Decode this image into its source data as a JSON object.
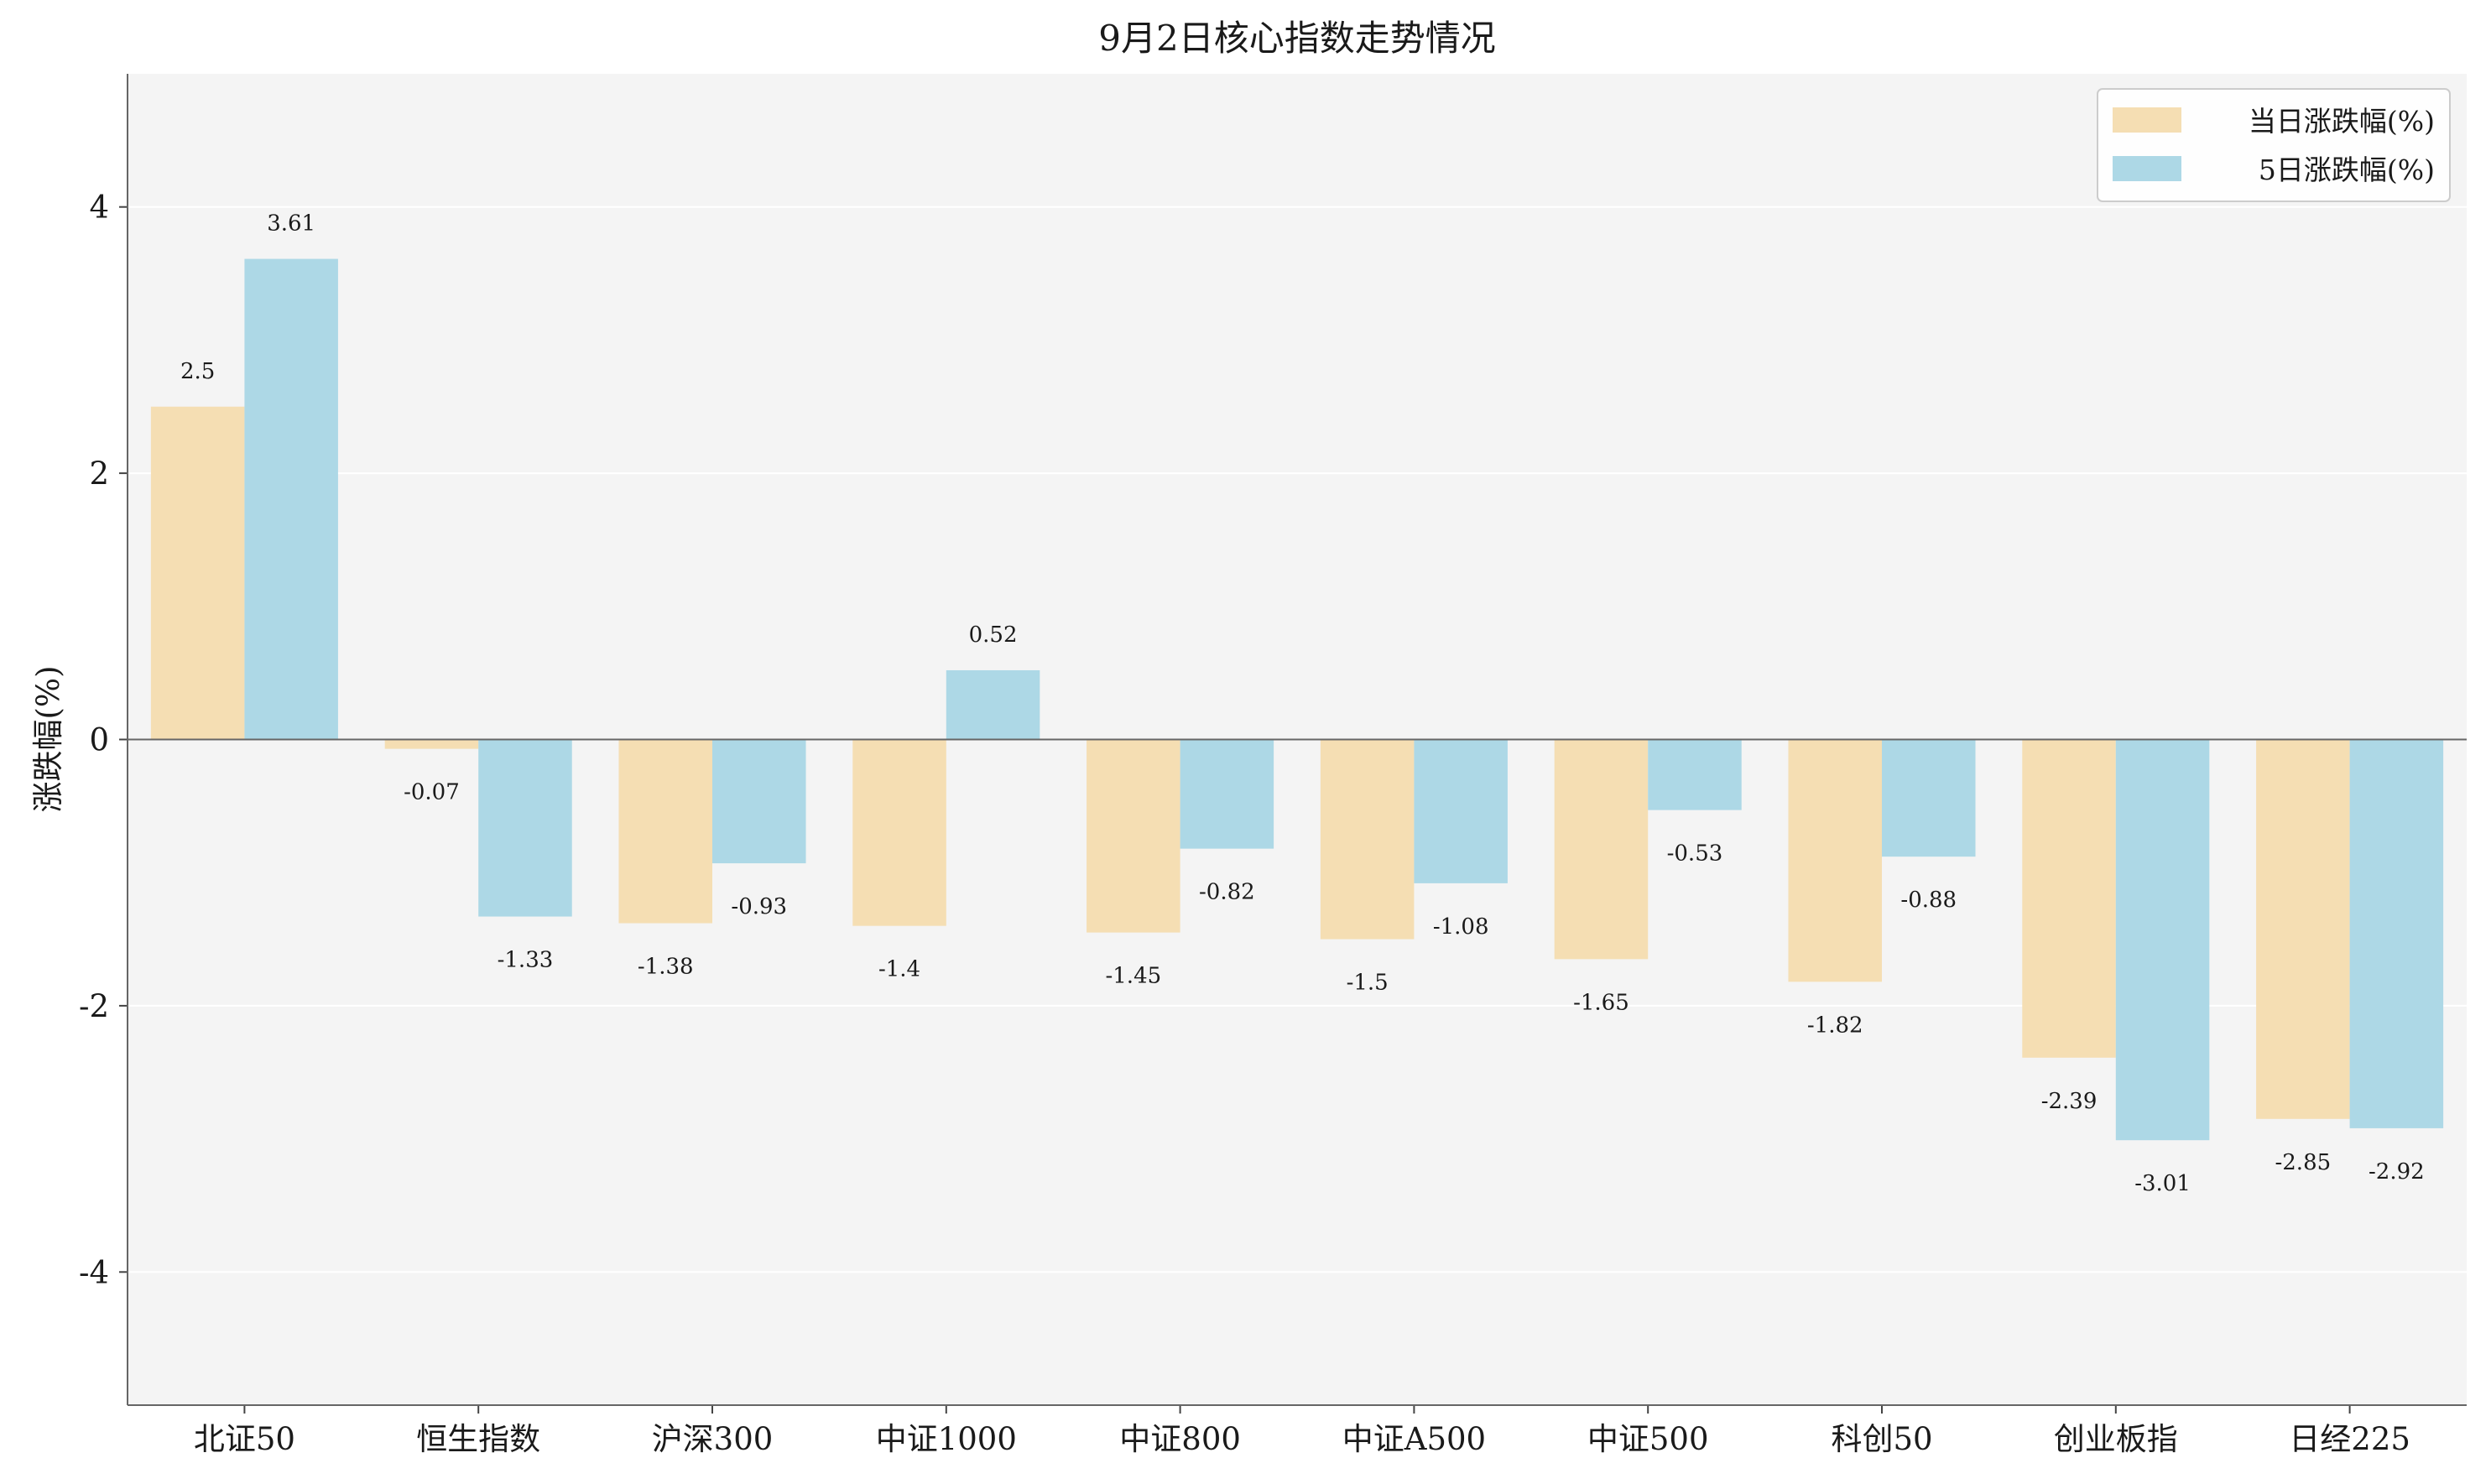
{
  "chart_data": {
    "type": "bar",
    "title": "9月2日核心指数走势情况",
    "xlabel": "",
    "ylabel": "涨跌幅(%)",
    "ylim": [
      -5,
      5
    ],
    "yticks": [
      -4,
      -2,
      0,
      2,
      4
    ],
    "grid": "horizontal",
    "legend_position": "top-right",
    "categories": [
      "北证50",
      "恒生指数",
      "沪深300",
      "中证1000",
      "中证800",
      "中证A500",
      "中证500",
      "科创50",
      "创业板指",
      "日经225"
    ],
    "series": [
      {
        "name": "当日涨跌幅(%)",
        "color": "#f5deb3",
        "values": [
          2.5,
          -0.07,
          -1.38,
          -1.4,
          -1.45,
          -1.5,
          -1.65,
          -1.82,
          -2.39,
          -2.85
        ]
      },
      {
        "name": "5日涨跌幅(%)",
        "color": "#add8e6",
        "values": [
          3.61,
          -1.33,
          -0.93,
          0.52,
          -0.82,
          -1.08,
          -0.53,
          -0.88,
          -3.01,
          -2.92
        ]
      }
    ],
    "plot_background": "#f4f4f4"
  }
}
